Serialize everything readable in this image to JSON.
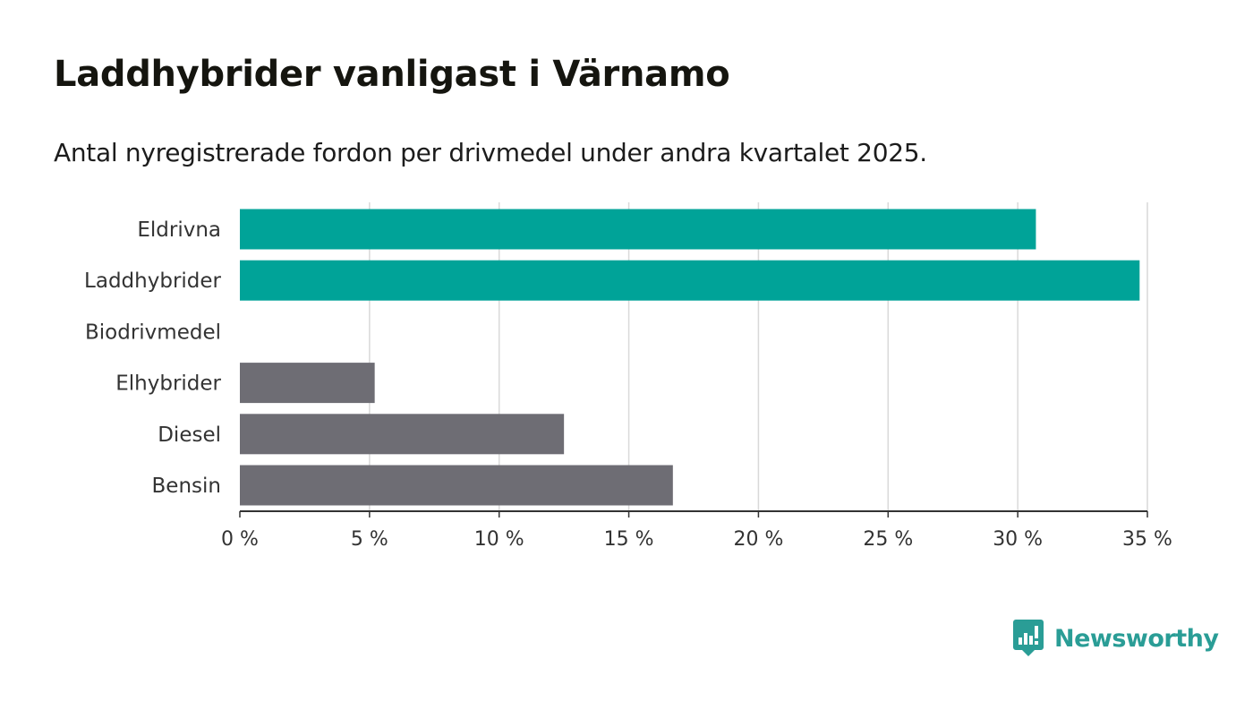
{
  "chart_data": {
    "type": "bar",
    "orientation": "horizontal",
    "title": "Laddhybrider vanligast i Värnamo",
    "subtitle": "Antal nyregistrerade fordon per drivmedel under andra kvartalet 2025.",
    "categories": [
      "Eldrivna",
      "Laddhybrider",
      "Biodrivmedel",
      "Elhybrider",
      "Diesel",
      "Bensin"
    ],
    "values": [
      30.7,
      34.7,
      0,
      5.2,
      12.5,
      16.7
    ],
    "bar_colors": [
      "#00a398",
      "#00a398",
      "#6e6d74",
      "#6e6d74",
      "#6e6d74",
      "#6e6d74"
    ],
    "xlim": [
      0,
      35
    ],
    "xticks": [
      0,
      5,
      10,
      15,
      20,
      25,
      30,
      35
    ],
    "tick_labels": [
      "0 %",
      "5 %",
      "10 %",
      "15 %",
      "20 %",
      "25 %",
      "30 %",
      "35 %"
    ],
    "xlabel": "",
    "ylabel": "",
    "grid": "vertical"
  },
  "brand": {
    "name": "Newsworthy",
    "color": "#2a9d96",
    "icon": "newsworthy-logo-icon"
  }
}
